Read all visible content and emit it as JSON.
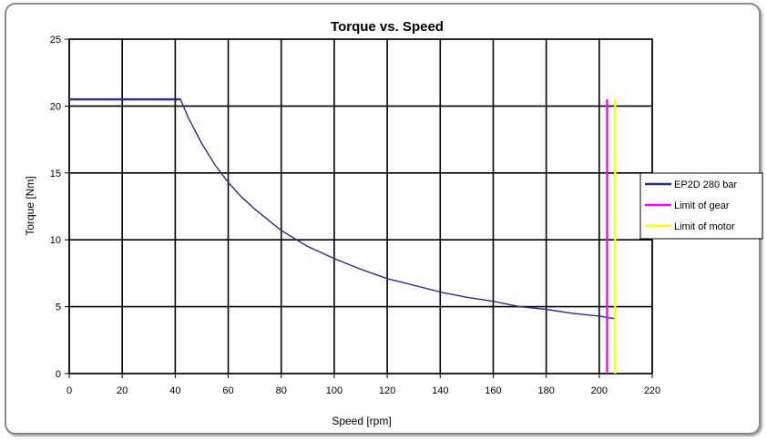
{
  "chart_data": {
    "type": "line",
    "title": "Torque vs. Speed",
    "xlabel": "Speed [rpm]",
    "ylabel": "Torque [Nm]",
    "xlim": [
      0,
      220
    ],
    "ylim": [
      0,
      25
    ],
    "xticks": [
      0,
      20,
      40,
      60,
      80,
      100,
      120,
      140,
      160,
      180,
      200,
      220
    ],
    "yticks": [
      0,
      5,
      10,
      15,
      20,
      25
    ],
    "grid": true,
    "legend_position": "right",
    "series": [
      {
        "name": "EP2D 280 bar",
        "color": "#2b2b8c",
        "x": [
          0,
          42,
          45,
          50,
          55,
          60,
          65,
          70,
          75,
          80,
          90,
          100,
          110,
          120,
          130,
          140,
          150,
          160,
          170,
          180,
          190,
          200,
          206
        ],
        "y": [
          20.5,
          20.5,
          19.1,
          17.2,
          15.6,
          14.3,
          13.2,
          12.3,
          11.5,
          10.7,
          9.5,
          8.6,
          7.8,
          7.1,
          6.6,
          6.1,
          5.7,
          5.4,
          5.0,
          4.8,
          4.5,
          4.3,
          4.1
        ]
      },
      {
        "name": "Limit of gear",
        "color": "#ff00ff",
        "x": [
          203,
          203
        ],
        "y": [
          0,
          20.5
        ]
      },
      {
        "name": "Limit of motor",
        "color": "#ffff00",
        "x": [
          206,
          206
        ],
        "y": [
          0,
          20.5
        ]
      }
    ]
  }
}
